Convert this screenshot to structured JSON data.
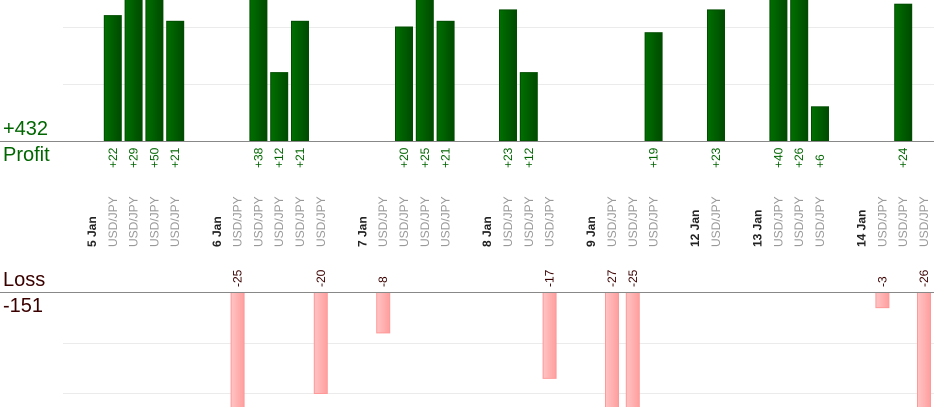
{
  "colors": {
    "profit": "#006600",
    "profit_dark": "#004d00",
    "loss_fill": "#ffb3b3",
    "loss_border": "#ff9999",
    "loss_text": "#3a0000",
    "symbol_text": "#999999"
  },
  "summary": {
    "profit_total": "+432",
    "profit_label": "Profit",
    "loss_label": "Loss",
    "loss_total": "-151"
  },
  "chart_data": {
    "type": "bar",
    "title": "",
    "profit_grid_step": 10,
    "loss_grid_step": 10,
    "groups": [
      {
        "date": "5 Jan",
        "trades": [
          {
            "symbol": "USD/JPY",
            "value": 22
          },
          {
            "symbol": "USD/JPY",
            "value": 29
          },
          {
            "symbol": "USD/JPY",
            "value": 50
          },
          {
            "symbol": "USD/JPY",
            "value": 21
          }
        ]
      },
      {
        "date": "6 Jan",
        "trades": [
          {
            "symbol": "USD/JPY",
            "value": -25
          },
          {
            "symbol": "USD/JPY",
            "value": 38
          },
          {
            "symbol": "USD/JPY",
            "value": 12
          },
          {
            "symbol": "USD/JPY",
            "value": 21
          },
          {
            "symbol": "USD/JPY",
            "value": -20
          }
        ]
      },
      {
        "date": "7 Jan",
        "trades": [
          {
            "symbol": "USD/JPY",
            "value": -8
          },
          {
            "symbol": "USD/JPY",
            "value": 20
          },
          {
            "symbol": "USD/JPY",
            "value": 25
          },
          {
            "symbol": "USD/JPY",
            "value": 21
          }
        ]
      },
      {
        "date": "8 Jan",
        "trades": [
          {
            "symbol": "USD/JPY",
            "value": 23
          },
          {
            "symbol": "USD/JPY",
            "value": 12
          },
          {
            "symbol": "USD/JPY",
            "value": -17
          }
        ]
      },
      {
        "date": "9 Jan",
        "trades": [
          {
            "symbol": "USD/JPY",
            "value": -27
          },
          {
            "symbol": "USD/JPY",
            "value": -25
          },
          {
            "symbol": "USD/JPY",
            "value": 19
          }
        ]
      },
      {
        "date": "12 Jan",
        "trades": [
          {
            "symbol": "USD/JPY",
            "value": 23
          }
        ]
      },
      {
        "date": "13 Jan",
        "trades": [
          {
            "symbol": "USD/JPY",
            "value": 40
          },
          {
            "symbol": "USD/JPY",
            "value": 26
          },
          {
            "symbol": "USD/JPY",
            "value": 6
          }
        ]
      },
      {
        "date": "14 Jan",
        "trades": [
          {
            "symbol": "USD/JPY",
            "value": -3
          },
          {
            "symbol": "USD/JPY",
            "value": 24
          },
          {
            "symbol": "USD/JPY",
            "value": -26
          }
        ]
      }
    ]
  }
}
